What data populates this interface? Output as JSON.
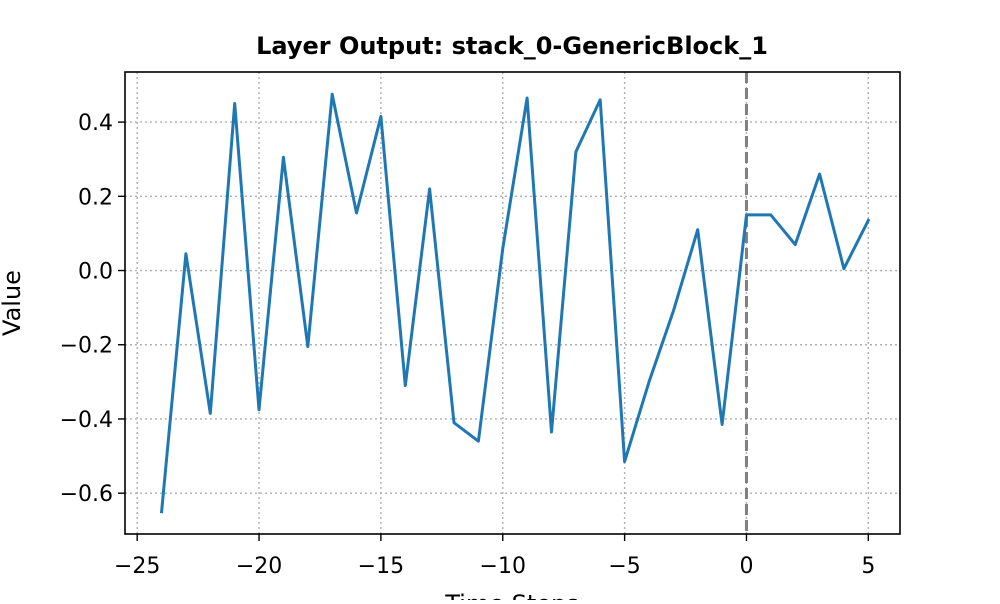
{
  "chart_data": {
    "type": "line",
    "title": "Layer Output: stack_0-GenericBlock_1",
    "xlabel": "Time Steps",
    "ylabel": "Value",
    "xlim": [
      -25.5,
      6.3
    ],
    "ylim": [
      -0.71,
      0.535
    ],
    "xticks": [
      -25,
      -20,
      -15,
      -10,
      -5,
      0,
      5
    ],
    "xtick_labels": [
      "−25",
      "−20",
      "−15",
      "−10",
      "−5",
      "0",
      "5"
    ],
    "yticks": [
      -0.6,
      -0.4,
      -0.2,
      0.0,
      0.2,
      0.4
    ],
    "ytick_labels": [
      "−0.6",
      "−0.4",
      "−0.2",
      "0.0",
      "0.2",
      "0.4"
    ],
    "grid": true,
    "vline": {
      "x": 0,
      "style": "dashed",
      "color": "#808080"
    },
    "series": [
      {
        "color": "#1f77b4",
        "x": [
          -24,
          -23,
          -22,
          -21,
          -20,
          -19,
          -18,
          -17,
          -16,
          -15,
          -14,
          -13,
          -12,
          -11,
          -10,
          -9,
          -8,
          -7,
          -6,
          -5,
          -4,
          -3,
          -2,
          -1,
          0,
          1,
          2,
          3,
          4,
          5
        ],
        "values": [
          -0.65,
          0.045,
          -0.385,
          0.45,
          -0.375,
          0.305,
          -0.205,
          0.475,
          0.155,
          0.415,
          -0.31,
          0.22,
          -0.41,
          -0.46,
          0.06,
          0.465,
          -0.435,
          0.32,
          0.46,
          -0.515,
          -0.3,
          -0.11,
          0.11,
          -0.415,
          0.15,
          0.15,
          0.07,
          0.26,
          0.005,
          0.135
        ]
      }
    ]
  }
}
